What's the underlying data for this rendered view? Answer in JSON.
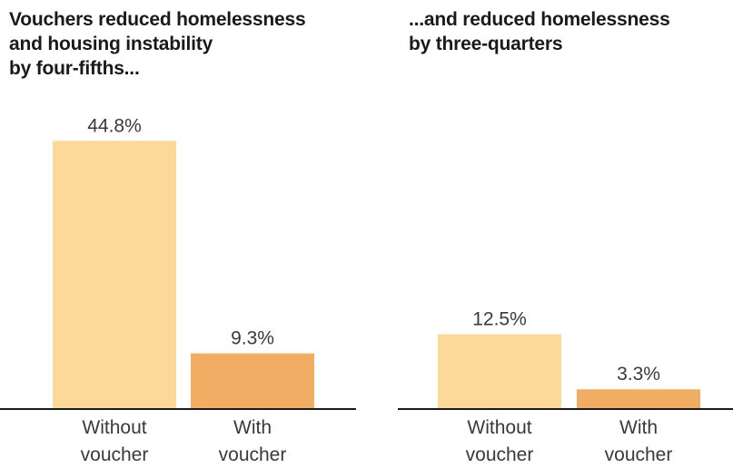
{
  "chart_data": [
    {
      "type": "bar",
      "title_lines": [
        "Vouchers reduced homelessness",
        "and housing instability",
        "by four-fifths..."
      ],
      "categories": [
        [
          "Without",
          "voucher"
        ],
        [
          "With",
          "voucher"
        ]
      ],
      "values": [
        44.8,
        9.3
      ],
      "value_labels": [
        "44.8%",
        "9.3%"
      ],
      "ylim": [
        0,
        50
      ],
      "colors": [
        "#fcd899",
        "#f0ad63"
      ],
      "grid": false
    },
    {
      "type": "bar",
      "title_lines": [
        "...and reduced homelessness",
        "by three-quarters"
      ],
      "categories": [
        [
          "Without",
          "voucher"
        ],
        [
          "With",
          "voucher"
        ]
      ],
      "values": [
        12.5,
        3.3
      ],
      "value_labels": [
        "12.5%",
        "3.3%"
      ],
      "ylim": [
        0,
        50
      ],
      "colors": [
        "#fcd899",
        "#f0ad63"
      ],
      "grid": false
    }
  ]
}
